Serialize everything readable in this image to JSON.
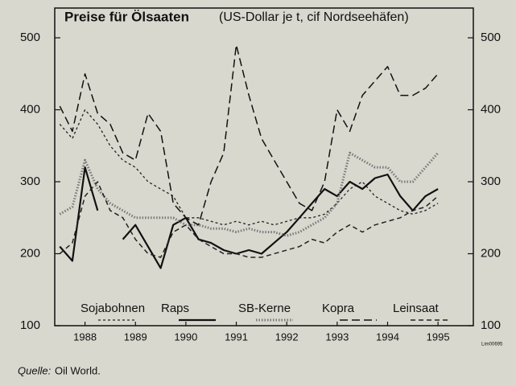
{
  "chart_data": {
    "type": "line",
    "title": "Preise für Ölsaaten",
    "subtitle": "(US-Dollar je t, cif Nordseehäfen)",
    "source_label": "Quelle:",
    "source": "Oil World.",
    "code": "Lim00695",
    "x": [
      1988,
      1988.25,
      1988.5,
      1988.75,
      1989,
      1989.25,
      1989.5,
      1989.75,
      1990,
      1990.25,
      1990.5,
      1990.75,
      1991,
      1991.25,
      1991.5,
      1991.75,
      1992,
      1992.25,
      1992.5,
      1992.75,
      1993,
      1993.25,
      1993.5,
      1993.75,
      1994,
      1994.25,
      1994.5,
      1994.75,
      1995,
      1995.25,
      1995.5
    ],
    "series": [
      {
        "name": "Sojabohnen",
        "color": "#222",
        "dash": "3 3",
        "width": 1.3,
        "values": [
          380,
          360,
          400,
          380,
          350,
          330,
          320,
          300,
          290,
          280,
          250,
          250,
          245,
          240,
          245,
          240,
          245,
          240,
          245,
          250,
          250,
          255,
          270,
          290,
          300,
          280,
          270,
          260,
          255,
          260,
          270
        ]
      },
      {
        "name": "Raps",
        "color": "#111",
        "dash": "none",
        "width": 2.2,
        "values": [
          210,
          190,
          320,
          260,
          null,
          220,
          240,
          210,
          180,
          240,
          250,
          220,
          215,
          205,
          200,
          205,
          200,
          215,
          230,
          250,
          270,
          290,
          280,
          300,
          290,
          305,
          310,
          280,
          260,
          280,
          290
        ]
      },
      {
        "name": "SB-Kerne",
        "color": "#777",
        "dash": "1.5 2",
        "width": 3,
        "values": [
          255,
          265,
          330,
          290,
          270,
          260,
          250,
          250,
          250,
          250,
          240,
          240,
          235,
          235,
          230,
          235,
          230,
          230,
          225,
          230,
          240,
          250,
          270,
          340,
          330,
          320,
          320,
          300,
          300,
          320,
          340
        ]
      },
      {
        "name": "Kopra",
        "color": "#111",
        "dash": "10 5",
        "width": 1.5,
        "values": [
          405,
          370,
          450,
          395,
          380,
          340,
          330,
          395,
          370,
          270,
          250,
          240,
          300,
          340,
          490,
          420,
          360,
          330,
          300,
          270,
          260,
          300,
          400,
          370,
          420,
          440,
          460,
          420,
          420,
          430,
          450
        ]
      },
      {
        "name": "Leinsaat",
        "color": "#222",
        "dash": "6 4",
        "width": 1.5,
        "values": [
          200,
          215,
          280,
          300,
          260,
          250,
          220,
          200,
          195,
          230,
          240,
          220,
          210,
          200,
          200,
          195,
          195,
          200,
          205,
          210,
          220,
          215,
          230,
          240,
          230,
          240,
          245,
          250,
          260,
          265,
          280
        ]
      }
    ],
    "xlim": [
      1987.9,
      1996.2
    ],
    "xticks": [
      {
        "value": 1988.5,
        "label": "1988"
      },
      {
        "value": 1989.5,
        "label": "1989"
      },
      {
        "value": 1990.5,
        "label": "1990"
      },
      {
        "value": 1991.5,
        "label": "1991"
      },
      {
        "value": 1992.5,
        "label": "1992"
      },
      {
        "value": 1993.5,
        "label": "1993"
      },
      {
        "value": 1994.5,
        "label": "1994"
      },
      {
        "value": 1995.5,
        "label": "1995"
      }
    ],
    "ylim": [
      100,
      500
    ],
    "yticks": [
      100,
      200,
      300,
      400,
      500
    ],
    "y2lim": [
      100,
      500
    ],
    "y2ticks": [
      100,
      200,
      300,
      400,
      500
    ],
    "legend": "bottom"
  }
}
